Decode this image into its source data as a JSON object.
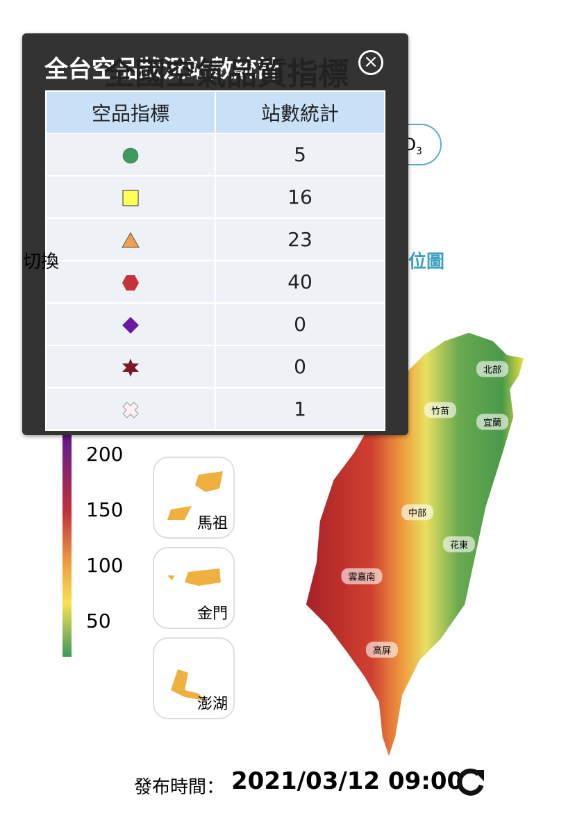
{
  "page_title": "全國空氣品質指標",
  "pollutant": {
    "base": "O",
    "sub": "3"
  },
  "switch_label": "切換",
  "map_link": "點位圖",
  "colorbar": {
    "labels": [
      200,
      150,
      100,
      50
    ]
  },
  "islands": [
    "馬祖",
    "金門",
    "澎湖"
  ],
  "regions": [
    "北部",
    "竹苗",
    "宜蘭",
    "中部",
    "花東",
    "雲嘉南",
    "高屏"
  ],
  "publish": {
    "label": "發布時間：",
    "time": "2021/03/12 09:00"
  },
  "modal": {
    "title": "全台空品狀況站數統計",
    "table": {
      "header": [
        "空品指標",
        "站數統計"
      ],
      "rows": [
        {
          "symbol": "circle",
          "color": "#3f9a5f",
          "count": 5
        },
        {
          "symbol": "square",
          "color": "#ffff55",
          "count": 16
        },
        {
          "symbol": "triangle",
          "color": "#f0a050",
          "count": 23
        },
        {
          "symbol": "hexagon",
          "color": "#c8303a",
          "count": 40
        },
        {
          "symbol": "diamond",
          "color": "#6a1aa0",
          "count": 0
        },
        {
          "symbol": "star",
          "color": "#7a1a28",
          "count": 0
        },
        {
          "symbol": "cross",
          "color": "#fdf0f4",
          "count": 1
        }
      ]
    }
  }
}
